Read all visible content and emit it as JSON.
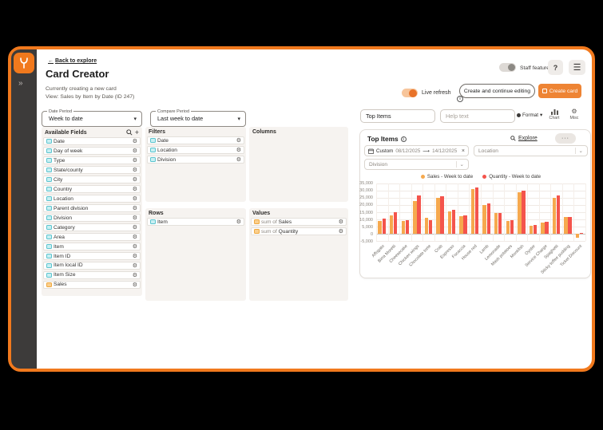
{
  "header": {
    "back_link": "Back to explore",
    "title": "Card Creator",
    "staff_toggle_label": "Staff features",
    "help_button": "?",
    "creating_text": "Currently creating a new card",
    "view_text": "View: Sales by Item by Date (ID 247)",
    "live_refresh_label": "Live refresh",
    "create_continue_button": "Create and continue editing",
    "create_card_button": "Create card"
  },
  "builder": {
    "date_period": {
      "label": "Date Period",
      "value": "Week to date"
    },
    "compare_period": {
      "label": "Compare Period",
      "value": "Last week to date"
    },
    "available_fields": {
      "title": "Available Fields",
      "items": [
        {
          "name": "Date",
          "type": "dimension"
        },
        {
          "name": "Day of week",
          "type": "dimension"
        },
        {
          "name": "Type",
          "type": "dimension"
        },
        {
          "name": "State/county",
          "type": "dimension"
        },
        {
          "name": "City",
          "type": "dimension"
        },
        {
          "name": "Country",
          "type": "dimension"
        },
        {
          "name": "Location",
          "type": "dimension"
        },
        {
          "name": "Parent division",
          "type": "dimension"
        },
        {
          "name": "Division",
          "type": "dimension"
        },
        {
          "name": "Category",
          "type": "dimension"
        },
        {
          "name": "Area",
          "type": "dimension"
        },
        {
          "name": "Item",
          "type": "dimension"
        },
        {
          "name": "Item ID",
          "type": "dimension"
        },
        {
          "name": "Item local ID",
          "type": "dimension"
        },
        {
          "name": "Item Size",
          "type": "dimension"
        },
        {
          "name": "Sales",
          "type": "measure"
        }
      ]
    },
    "filters": {
      "title": "Filters",
      "items": [
        {
          "name": "Date",
          "type": "dimension"
        },
        {
          "name": "Location",
          "type": "dimension"
        },
        {
          "name": "Division",
          "type": "dimension"
        }
      ]
    },
    "columns": {
      "title": "Columns",
      "items": []
    },
    "rows": {
      "title": "Rows",
      "items": [
        {
          "name": "Item",
          "type": "dimension"
        }
      ]
    },
    "values": {
      "title": "Values",
      "items": [
        {
          "name": "Sales",
          "prefix": "sum of ",
          "type": "measure"
        },
        {
          "name": "Quantity",
          "prefix": "sum of ",
          "type": "measure"
        }
      ]
    }
  },
  "card_editor": {
    "title_value": "Top Items",
    "help_placeholder": "Help text",
    "format_label": "Format",
    "chart_label": "Chart",
    "misc_label": "Misc"
  },
  "card": {
    "title": "Top Items",
    "explore_label": "Explore",
    "more_button": "···",
    "date_filter": {
      "mode": "Custom",
      "start": "08/12/2025",
      "end": "14/12/2025"
    },
    "location_filter": "Location",
    "division_filter": "Division"
  },
  "chart_data": {
    "type": "bar",
    "title": "Top Items",
    "categories": [
      "Affogato",
      "Birra Moretti",
      "Cheesecake",
      "Chicken wings",
      "Chocolate torte",
      "Crab",
      "Espresso",
      "Focaccia",
      "House red",
      "Lamb",
      "Lemonade",
      "Mash potatoes",
      "Monkfish",
      "Oyster",
      "Service Charge",
      "Spaghetti",
      "Sticky toffee pudding",
      "Ticket Discount"
    ],
    "series": [
      {
        "name": "Sales - Week to date",
        "color": "#F6A94E",
        "values": [
          8800,
          13000,
          8700,
          22800,
          11000,
          25000,
          15800,
          12000,
          31000,
          20000,
          14300,
          8800,
          29000,
          5600,
          7800,
          25000,
          11500,
          -2500
        ]
      },
      {
        "name": "Quantity - Week to date",
        "color": "#F4544C",
        "values": [
          10500,
          14800,
          9200,
          26800,
          9200,
          26200,
          16800,
          12800,
          32000,
          21000,
          14500,
          9300,
          29800,
          6000,
          8300,
          26800,
          11800,
          500
        ]
      }
    ],
    "xlabel": "",
    "ylabel": "",
    "ylim": [
      -5000,
      35000
    ],
    "ytick_step": 5000,
    "grid": true,
    "legend_position": "top"
  },
  "colors": {
    "accent": "#F1791D",
    "create_button": "#EE8434",
    "sales_series": "#F6A94E",
    "quantity_series": "#F4544C",
    "dimension_icon": "#5BC4CE",
    "measure_icon": "#EFA83F"
  },
  "sidebar": {
    "logo": "app-logo",
    "collapse": "»"
  }
}
